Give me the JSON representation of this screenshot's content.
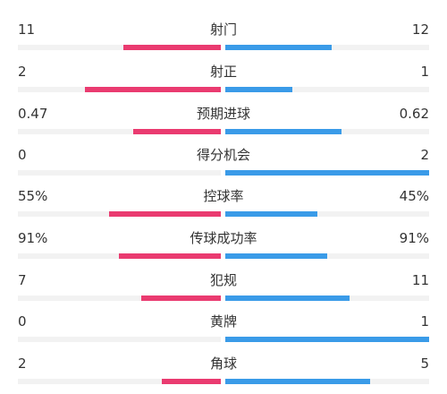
{
  "colors": {
    "home": "#ea3b70",
    "away": "#3a9be8",
    "track": "#f2f2f2",
    "text": "#333333"
  },
  "stats": [
    {
      "name": "射门",
      "home": "11",
      "away": "12",
      "home_share": 0.48,
      "away_share": 0.52
    },
    {
      "name": "射正",
      "home": "2",
      "away": "1",
      "home_share": 0.67,
      "away_share": 0.33
    },
    {
      "name": "预期进球",
      "home": "0.47",
      "away": "0.62",
      "home_share": 0.43,
      "away_share": 0.57
    },
    {
      "name": "得分机会",
      "home": "0",
      "away": "2",
      "home_share": 0.0,
      "away_share": 1.0
    },
    {
      "name": "控球率",
      "home": "55%",
      "away": "45%",
      "home_share": 0.55,
      "away_share": 0.45
    },
    {
      "name": "传球成功率",
      "home": "91%",
      "away": "91%",
      "home_share": 0.5,
      "away_share": 0.5
    },
    {
      "name": "犯规",
      "home": "7",
      "away": "11",
      "home_share": 0.39,
      "away_share": 0.61
    },
    {
      "name": "黄牌",
      "home": "0",
      "away": "1",
      "home_share": 0.0,
      "away_share": 1.0
    },
    {
      "name": "角球",
      "home": "2",
      "away": "5",
      "home_share": 0.29,
      "away_share": 0.71
    }
  ]
}
